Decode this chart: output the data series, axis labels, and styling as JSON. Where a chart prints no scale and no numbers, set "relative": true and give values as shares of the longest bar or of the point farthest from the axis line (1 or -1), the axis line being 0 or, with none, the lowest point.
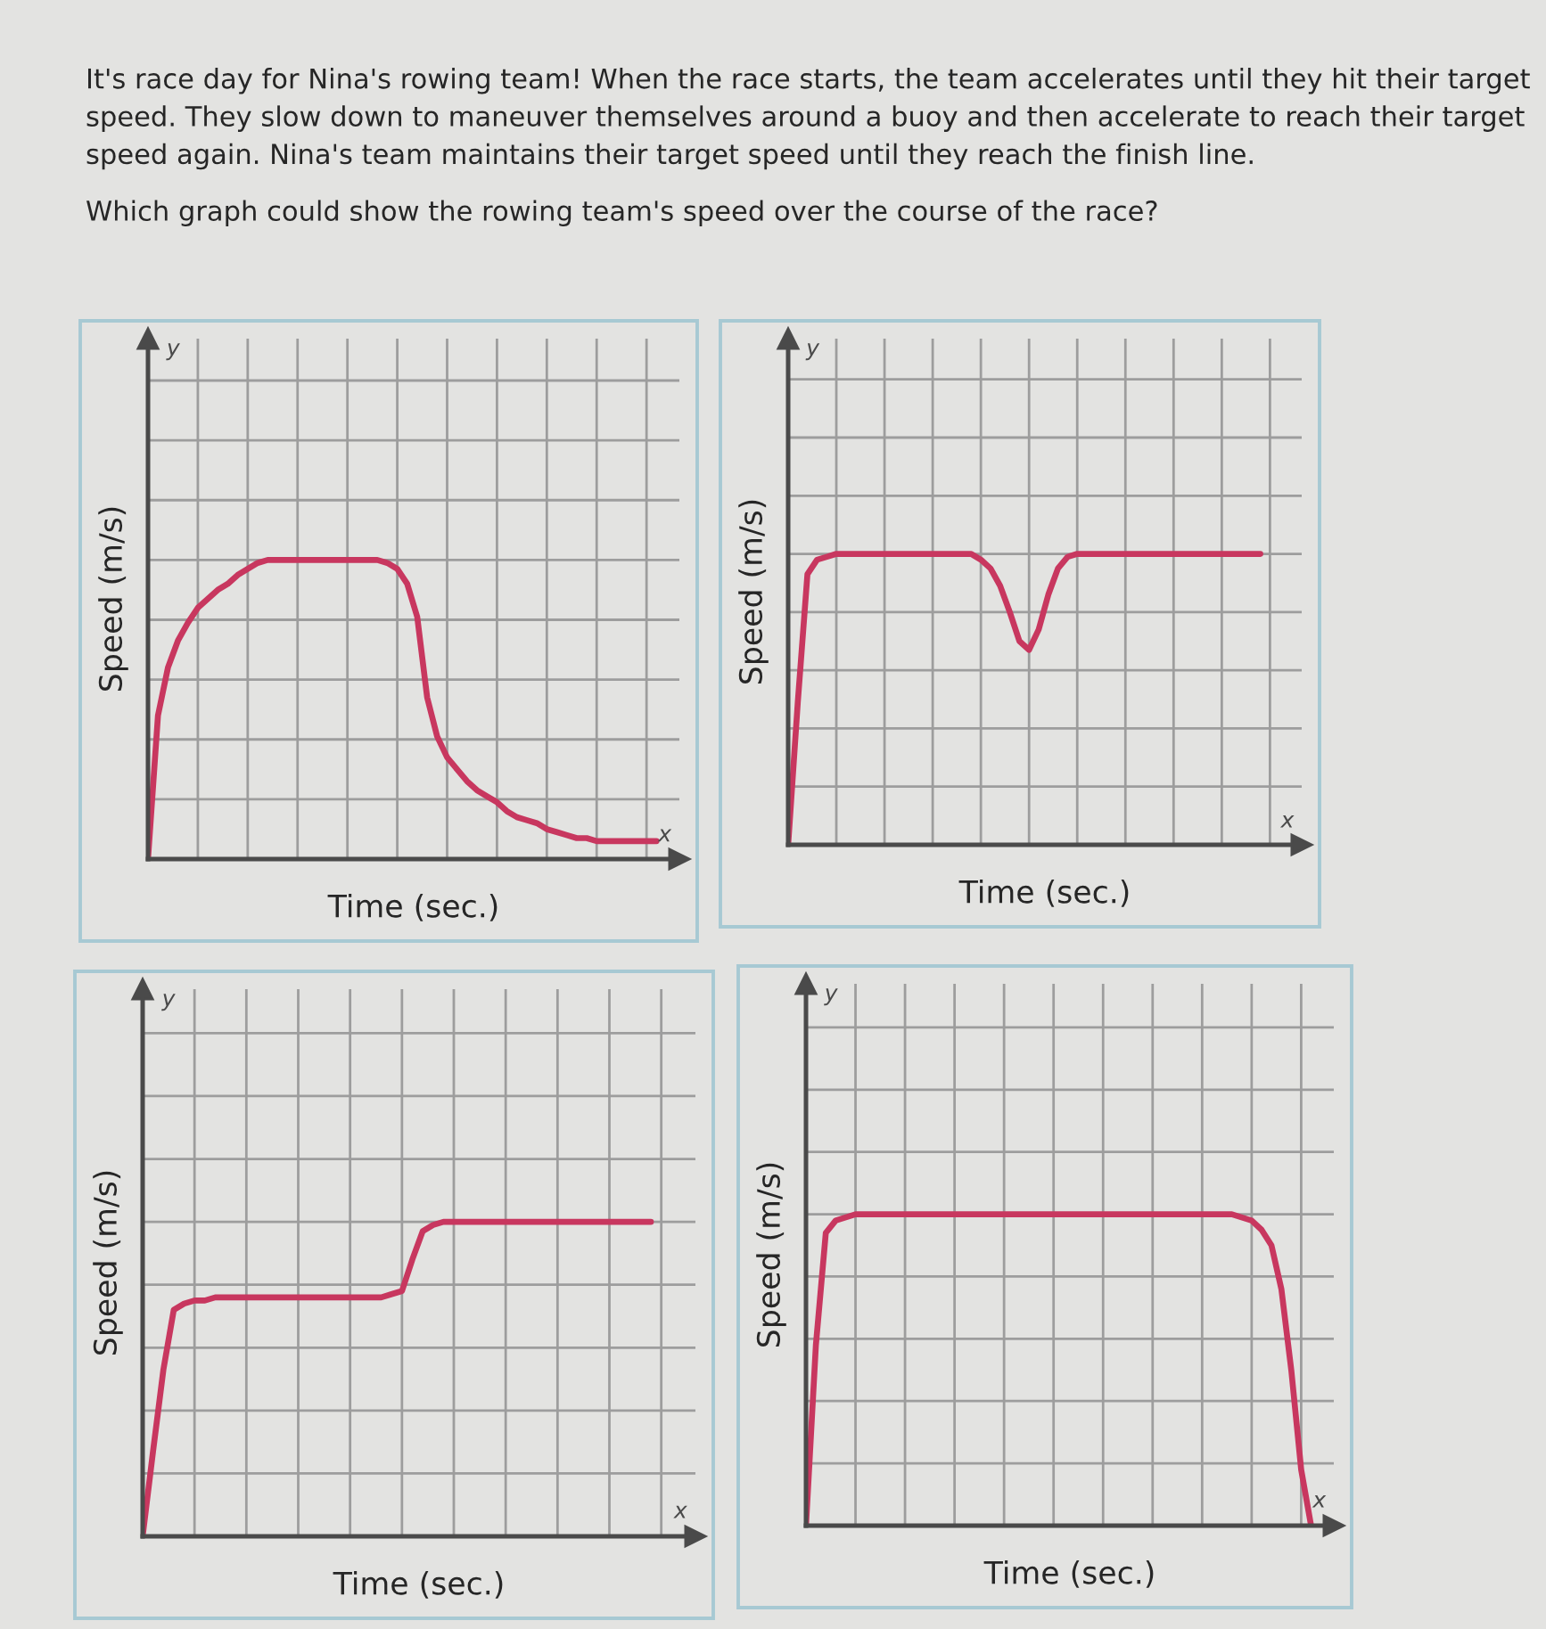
{
  "chart_data": [
    {
      "type": "line",
      "title": "It's race day for Nina's rowing team! When the race starts, the team accelerates until they hit their target speed. They slow down to maneuver themselves around a buoy and then accelerate to reach their target speed again. Nina's team maintains their target speed until they reach the finish line.",
      "subtitle": "Which graph could show the rowing team's speed over the course of the race?",
      "xlabel": "Time (sec.)",
      "ylabel": "Speed (m/s)",
      "annotations": [
        "y",
        "x"
      ],
      "categories": [
        null,
        null,
        null,
        null,
        null,
        null,
        null,
        null,
        null,
        null,
        null,
        null,
        null,
        null,
        null,
        null,
        null,
        null,
        null,
        null,
        null,
        null,
        null,
        null,
        null,
        null,
        null,
        null,
        null,
        null,
        null,
        null,
        null,
        null,
        null,
        null,
        null,
        null,
        null,
        null,
        null,
        null,
        null,
        null,
        null,
        null,
        null,
        null,
        null,
        null,
        null,
        null
      ],
      "series": [
        {
          "color": "#c8375f",
          "values": [
            0,
            0.48,
            0.64,
            0.73,
            0.79,
            0.84,
            0.87,
            0.9,
            0.92,
            0.95,
            0.97,
            0.99,
            1.0,
            1.0,
            1.0,
            1.0,
            1.0,
            1.0,
            1.0,
            1.0,
            1.0,
            1.0,
            1.0,
            1.0,
            0.99,
            0.97,
            0.92,
            0.81,
            0.54,
            0.41,
            0.34,
            0.3,
            0.26,
            0.23,
            0.21,
            0.19,
            0.16,
            0.14,
            0.13,
            0.12,
            0.1,
            0.09,
            0.08,
            0.07,
            0.07,
            0.06,
            0.06,
            0.06,
            0.06,
            0.06,
            0.06,
            0.06
          ]
        }
      ],
      "relative": true,
      "grid": true,
      "tick_labels": false,
      "line_style": "solid"
    },
    {
      "type": "line",
      "xlabel": "Time (sec.)",
      "ylabel": "Speed (m/s)",
      "annotations": [
        "y",
        "x"
      ],
      "categories": [
        null,
        null,
        null,
        null,
        null,
        null,
        null,
        null,
        null,
        null,
        null,
        null,
        null,
        null,
        null,
        null,
        null,
        null,
        null,
        null,
        null,
        null,
        null,
        null,
        null,
        null,
        null,
        null,
        null,
        null,
        null,
        null,
        null,
        null,
        null,
        null,
        null,
        null,
        null,
        null,
        null,
        null,
        null,
        null,
        null,
        null,
        null,
        null,
        null,
        null,
        null,
        null
      ],
      "series": [
        {
          "color": "#c8375f",
          "values": [
            0,
            0.49,
            0.93,
            0.98,
            0.99,
            1.0,
            1.0,
            1.0,
            1.0,
            1.0,
            1.0,
            1.0,
            1.0,
            1.0,
            1.0,
            1.0,
            1.0,
            1.0,
            1.0,
            1.0,
            0.98,
            0.95,
            0.89,
            0.8,
            0.7,
            0.67,
            0.74,
            0.86,
            0.95,
            0.99,
            1.0,
            1.0,
            1.0,
            1.0,
            1.0,
            1.0,
            1.0,
            1.0,
            1.0,
            1.0,
            1.0,
            1.0,
            1.0,
            1.0,
            1.0,
            1.0,
            1.0,
            1.0,
            1.0,
            1.0,
            null,
            null
          ]
        }
      ],
      "relative": true,
      "grid": true,
      "tick_labels": false,
      "line_style": "solid"
    },
    {
      "type": "line",
      "xlabel": "Time (sec.)",
      "ylabel": "Speed (m/s)",
      "annotations": [
        "y",
        "x"
      ],
      "categories": [
        null,
        null,
        null,
        null,
        null,
        null,
        null,
        null,
        null,
        null,
        null,
        null,
        null,
        null,
        null,
        null,
        null,
        null,
        null,
        null,
        null,
        null,
        null,
        null,
        null,
        null,
        null,
        null,
        null,
        null,
        null,
        null,
        null,
        null,
        null,
        null,
        null,
        null,
        null,
        null,
        null,
        null,
        null,
        null,
        null,
        null,
        null,
        null,
        null,
        null,
        null,
        null
      ],
      "series": [
        {
          "color": "#c8375f",
          "values": [
            0,
            0.27,
            0.53,
            0.72,
            0.74,
            0.75,
            0.75,
            0.76,
            0.76,
            0.76,
            0.76,
            0.76,
            0.76,
            0.76,
            0.76,
            0.76,
            0.76,
            0.76,
            0.76,
            0.76,
            0.76,
            0.76,
            0.76,
            0.76,
            0.77,
            0.78,
            0.88,
            0.97,
            0.99,
            1.0,
            1.0,
            1.0,
            1.0,
            1.0,
            1.0,
            1.0,
            1.0,
            1.0,
            1.0,
            1.0,
            1.0,
            1.0,
            1.0,
            1.0,
            1.0,
            1.0,
            1.0,
            1.0,
            1.0,
            1.0,
            null,
            null
          ]
        }
      ],
      "relative": true,
      "grid": true,
      "tick_labels": false,
      "line_style": "solid"
    },
    {
      "type": "line",
      "xlabel": "Time (sec.)",
      "ylabel": "Speed (m/s)",
      "annotations": [
        "y",
        "x"
      ],
      "categories": [
        null,
        null,
        null,
        null,
        null,
        null,
        null,
        null,
        null,
        null,
        null,
        null,
        null,
        null,
        null,
        null,
        null,
        null,
        null,
        null,
        null,
        null,
        null,
        null,
        null,
        null,
        null,
        null,
        null,
        null,
        null,
        null,
        null,
        null,
        null,
        null,
        null,
        null,
        null,
        null,
        null,
        null,
        null,
        null,
        null,
        null,
        null,
        null,
        null,
        null,
        null,
        null
      ],
      "series": [
        {
          "color": "#c8375f",
          "values": [
            0,
            0.58,
            0.94,
            0.98,
            0.99,
            1.0,
            1.0,
            1.0,
            1.0,
            1.0,
            1.0,
            1.0,
            1.0,
            1.0,
            1.0,
            1.0,
            1.0,
            1.0,
            1.0,
            1.0,
            1.0,
            1.0,
            1.0,
            1.0,
            1.0,
            1.0,
            1.0,
            1.0,
            1.0,
            1.0,
            1.0,
            1.0,
            1.0,
            1.0,
            1.0,
            1.0,
            1.0,
            1.0,
            1.0,
            1.0,
            1.0,
            1.0,
            1.0,
            1.0,
            0.99,
            0.98,
            0.95,
            0.9,
            0.76,
            0.5,
            0.18,
            0
          ]
        }
      ],
      "relative": true,
      "grid": true,
      "tick_labels": false,
      "line_style": "solid"
    }
  ]
}
